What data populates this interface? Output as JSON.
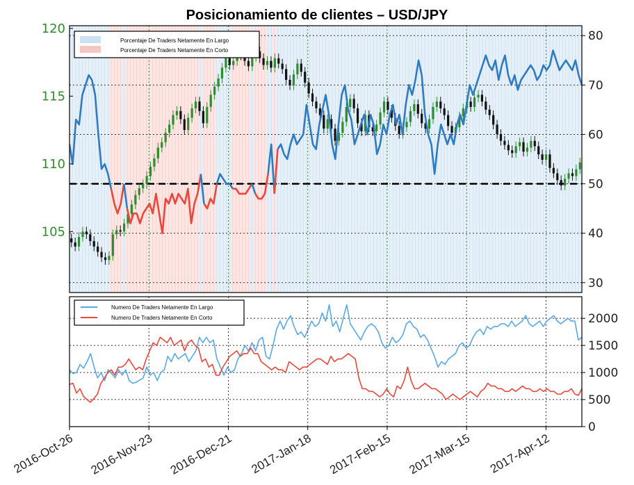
{
  "chart_data": [
    {
      "type": "line",
      "title": "Posicionamiento de clientes – USD/JPY",
      "left_axis": {
        "ticks": [
          105,
          110,
          115,
          120
        ],
        "ylim": [
          100.5,
          120.2
        ],
        "color": "#2e8b2e"
      },
      "right_axis": {
        "ticks": [
          30,
          40,
          50,
          60,
          70,
          80
        ],
        "ylim": [
          28,
          82
        ]
      },
      "threshold": 50,
      "legend": [
        "Porcentaje De Traders Netamente En Largo",
        "Porcentaje De Traders Netamente En Corto"
      ],
      "legend_colors": [
        "#9fc8e8",
        "#f4a5a0"
      ],
      "long_color": "#2e7bbf",
      "short_color": "#e8473b",
      "percent_long": [
        58,
        54,
        63,
        62,
        68,
        70,
        72,
        71,
        68,
        60,
        53,
        54,
        52,
        49,
        46,
        44,
        46,
        50,
        45,
        42,
        44,
        44,
        42,
        44,
        45,
        46,
        44,
        48,
        44,
        40,
        47,
        46,
        48,
        46,
        48,
        47,
        46,
        49,
        42,
        46,
        48,
        52,
        46,
        45,
        47,
        46,
        50,
        52,
        51,
        50,
        50,
        49,
        49,
        48,
        48,
        48,
        49,
        50,
        48,
        47,
        47,
        48,
        52,
        58,
        48,
        57,
        58,
        56,
        55,
        58,
        60,
        58,
        59,
        60,
        66,
        62,
        58,
        57,
        62,
        65,
        68,
        64,
        58,
        55,
        62,
        68,
        70,
        65,
        63,
        58,
        60,
        62,
        64,
        60,
        64,
        62,
        56,
        58,
        62,
        60,
        64,
        66,
        62,
        64,
        60,
        66,
        70,
        68,
        71,
        75,
        72,
        64,
        60,
        58,
        52,
        58,
        62,
        60,
        58,
        60,
        58,
        62,
        64,
        62,
        66,
        70,
        68,
        70,
        72,
        74,
        76,
        74,
        73,
        75,
        71,
        74,
        76,
        72,
        70,
        72,
        69,
        71,
        72,
        73,
        74,
        73,
        71,
        72,
        74,
        73,
        74,
        77,
        75,
        73,
        74,
        75,
        74,
        73,
        75,
        72,
        70
      ],
      "price_ohlc_note": "candlestick series, USD/JPY daily",
      "price_close": [
        104.2,
        103.9,
        104.6,
        105.0,
        104.8,
        104.3,
        103.9,
        103.5,
        103.1,
        102.9,
        103.2,
        104.8,
        105.1,
        105.0,
        105.6,
        106.3,
        107.0,
        107.7,
        108.2,
        108.5,
        109.1,
        109.8,
        110.4,
        111.2,
        111.6,
        112.3,
        112.9,
        113.6,
        113.9,
        113.3,
        112.5,
        113.4,
        114.1,
        114.6,
        113.9,
        113.0,
        114.2,
        115.1,
        115.7,
        116.3,
        117.1,
        117.8,
        117.3,
        117.6,
        118.2,
        118.0,
        117.6,
        117.2,
        117.9,
        118.3,
        117.8,
        117.3,
        117.6,
        117.1,
        117.8,
        117.4,
        117.0,
        116.2,
        115.8,
        116.6,
        117.4,
        116.8,
        116.0,
        115.2,
        114.6,
        114.1,
        113.6,
        112.6,
        113.3,
        112.6,
        111.7,
        112.3,
        113.1,
        114.2,
        114.8,
        114.1,
        113.0,
        112.4,
        113.6,
        112.7,
        112.4,
        112.9,
        113.8,
        114.6,
        114.0,
        113.4,
        112.8,
        112.2,
        112.7,
        113.1,
        113.9,
        114.4,
        113.7,
        113.0,
        112.6,
        113.3,
        114.2,
        114.6,
        114.1,
        113.6,
        112.8,
        112.3,
        112.7,
        113.5,
        114.1,
        114.6,
        114.2,
        114.9,
        115.1,
        114.6,
        114.0,
        113.6,
        112.9,
        112.2,
        111.7,
        111.4,
        111.0,
        110.8,
        111.3,
        111.6,
        110.9,
        111.2,
        111.7,
        111.3,
        110.7,
        110.3,
        110.7,
        109.7,
        109.3,
        108.8,
        108.4,
        108.9,
        109.3,
        109.1,
        109.6,
        110.1
      ],
      "y_units": "price (left), percent (right)"
    },
    {
      "type": "line",
      "legend": [
        "Numero De Traders Netamente En Largo",
        "Numero De Traders Netamente En Corto"
      ],
      "legend_colors": [
        "#5aa7e8",
        "#e8473b"
      ],
      "ylim": [
        0,
        2400
      ],
      "y_ticks": [
        0,
        500,
        1000,
        1500,
        2000
      ],
      "x_tick_labels": [
        "2016-Oct-26",
        "2016-Nov-23",
        "2016-Dec-21",
        "2017-Jan-18",
        "2017-Feb-15",
        "2017-Mar-15",
        "2017-Apr-12"
      ],
      "long_traders": [
        1050,
        980,
        1000,
        1150,
        1080,
        1200,
        1350,
        1100,
        900,
        1000,
        850,
        1050,
        980,
        900,
        1050,
        950,
        1050,
        850,
        800,
        820,
        860,
        900,
        1100,
        950,
        1000,
        850,
        1000,
        1050,
        1300,
        1200,
        1350,
        1250,
        1300,
        1350,
        1200,
        1300,
        1400,
        1650,
        1550,
        1650,
        1550,
        1600,
        1250,
        1100,
        950,
        1100,
        1000,
        1050,
        1250,
        1350,
        1500,
        1400,
        1550,
        1400,
        1600,
        1650,
        1300,
        1250,
        1500,
        1800,
        1950,
        1800,
        1950,
        2050,
        1850,
        1700,
        1750,
        1650,
        1800,
        1950,
        1850,
        1900,
        2100,
        1950,
        2250,
        1850,
        1950,
        1750,
        2000,
        2250,
        1900,
        1800,
        1700,
        1600,
        1750,
        1850,
        1900,
        1850,
        1750,
        1550,
        1450,
        1500,
        1650,
        1550,
        1600,
        1700,
        1900,
        1950,
        1850,
        1800,
        1650,
        1700,
        1600,
        1450,
        1300,
        1100,
        1200,
        1150,
        1250,
        1300,
        1350,
        1500,
        1550,
        1450,
        1500,
        1650,
        1750,
        1800,
        1700,
        1850,
        1800,
        1850,
        1850,
        1900,
        1900,
        1850,
        1950,
        1850,
        1900,
        1950,
        2050,
        1900,
        1850,
        1900,
        1950,
        1850,
        1950,
        2000,
        2050,
        1950,
        1900,
        1950,
        2000,
        1950,
        1950,
        1600,
        1650
      ],
      "short_traders": [
        780,
        800,
        620,
        700,
        560,
        500,
        450,
        520,
        600,
        800,
        900,
        1000,
        1050,
        950,
        1100,
        1100,
        1150,
        1250,
        1150,
        1050,
        1100,
        1050,
        1250,
        1400,
        1550,
        1500,
        1650,
        1600,
        1550,
        1650,
        1500,
        1550,
        1600,
        1400,
        1550,
        1600,
        1500,
        1450,
        1200,
        1250,
        1100,
        1150,
        950,
        950,
        1100,
        1200,
        1300,
        1350,
        1400,
        1300,
        1350,
        1350,
        1450,
        1350,
        1350,
        1200,
        1150,
        1100,
        1050,
        1100,
        1050,
        1050,
        1000,
        1200,
        1150,
        1100,
        1050,
        1100,
        1100,
        1150,
        1200,
        1250,
        1250,
        1200,
        1150,
        1300,
        1200,
        1250,
        1250,
        1300,
        1350,
        1300,
        1250,
        900,
        700,
        700,
        650,
        650,
        600,
        550,
        600,
        700,
        600,
        550,
        750,
        700,
        850,
        1100,
        850,
        700,
        700,
        750,
        800,
        750,
        700,
        700,
        650,
        600,
        500,
        550,
        600,
        550,
        500,
        550,
        600,
        650,
        600,
        550,
        650,
        700,
        800,
        750,
        750,
        700,
        700,
        650,
        650,
        700,
        650,
        700,
        750,
        700,
        700,
        650,
        650,
        700,
        650,
        700,
        650,
        650,
        600,
        600,
        650,
        650,
        700,
        600,
        580,
        700
      ]
    }
  ]
}
